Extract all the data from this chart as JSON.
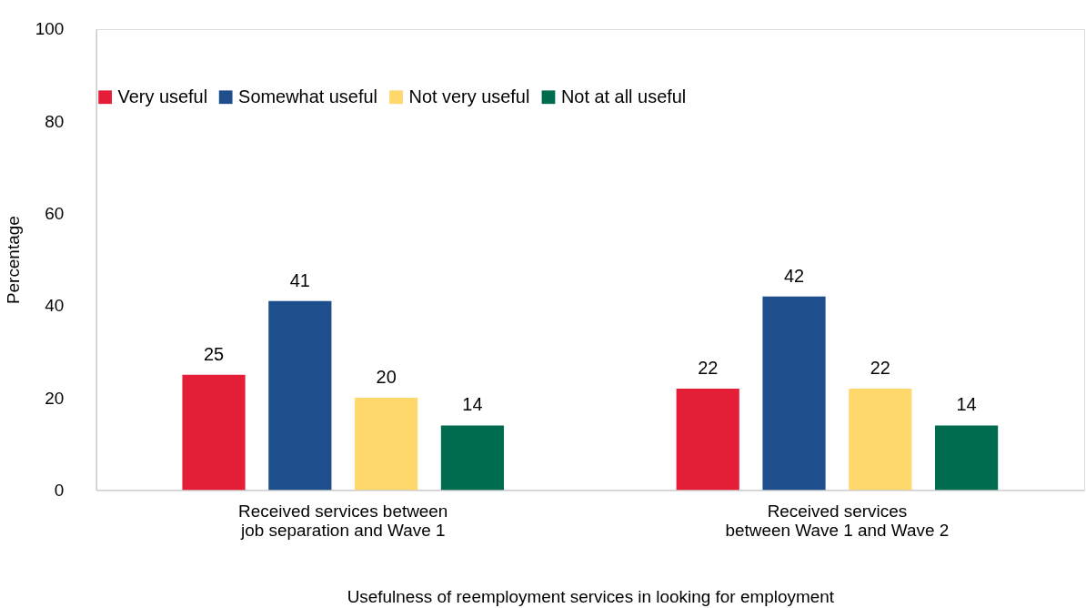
{
  "chart_data": {
    "type": "bar",
    "xlabel": "Usefulness of reemployment services in looking for employment",
    "ylabel": "Percentage",
    "categories": [
      "Received services between job separation and Wave 1",
      "Received services between Wave 1 and Wave 2"
    ],
    "series": [
      {
        "name": "Very useful",
        "color": "#e41e36",
        "values": [
          25,
          22
        ]
      },
      {
        "name": "Somewhat useful",
        "color": "#1f4e8c",
        "values": [
          41,
          42
        ]
      },
      {
        "name": "Not very useful",
        "color": "#fed86b",
        "values": [
          20,
          22
        ]
      },
      {
        "name": "Not at all useful",
        "color": "#006c4f",
        "values": [
          14,
          14
        ]
      }
    ],
    "ylim": [
      0,
      100
    ],
    "yticks": [
      0,
      20,
      40,
      60,
      80,
      100
    ],
    "grid": false,
    "legend": "top",
    "data_labels": true
  }
}
